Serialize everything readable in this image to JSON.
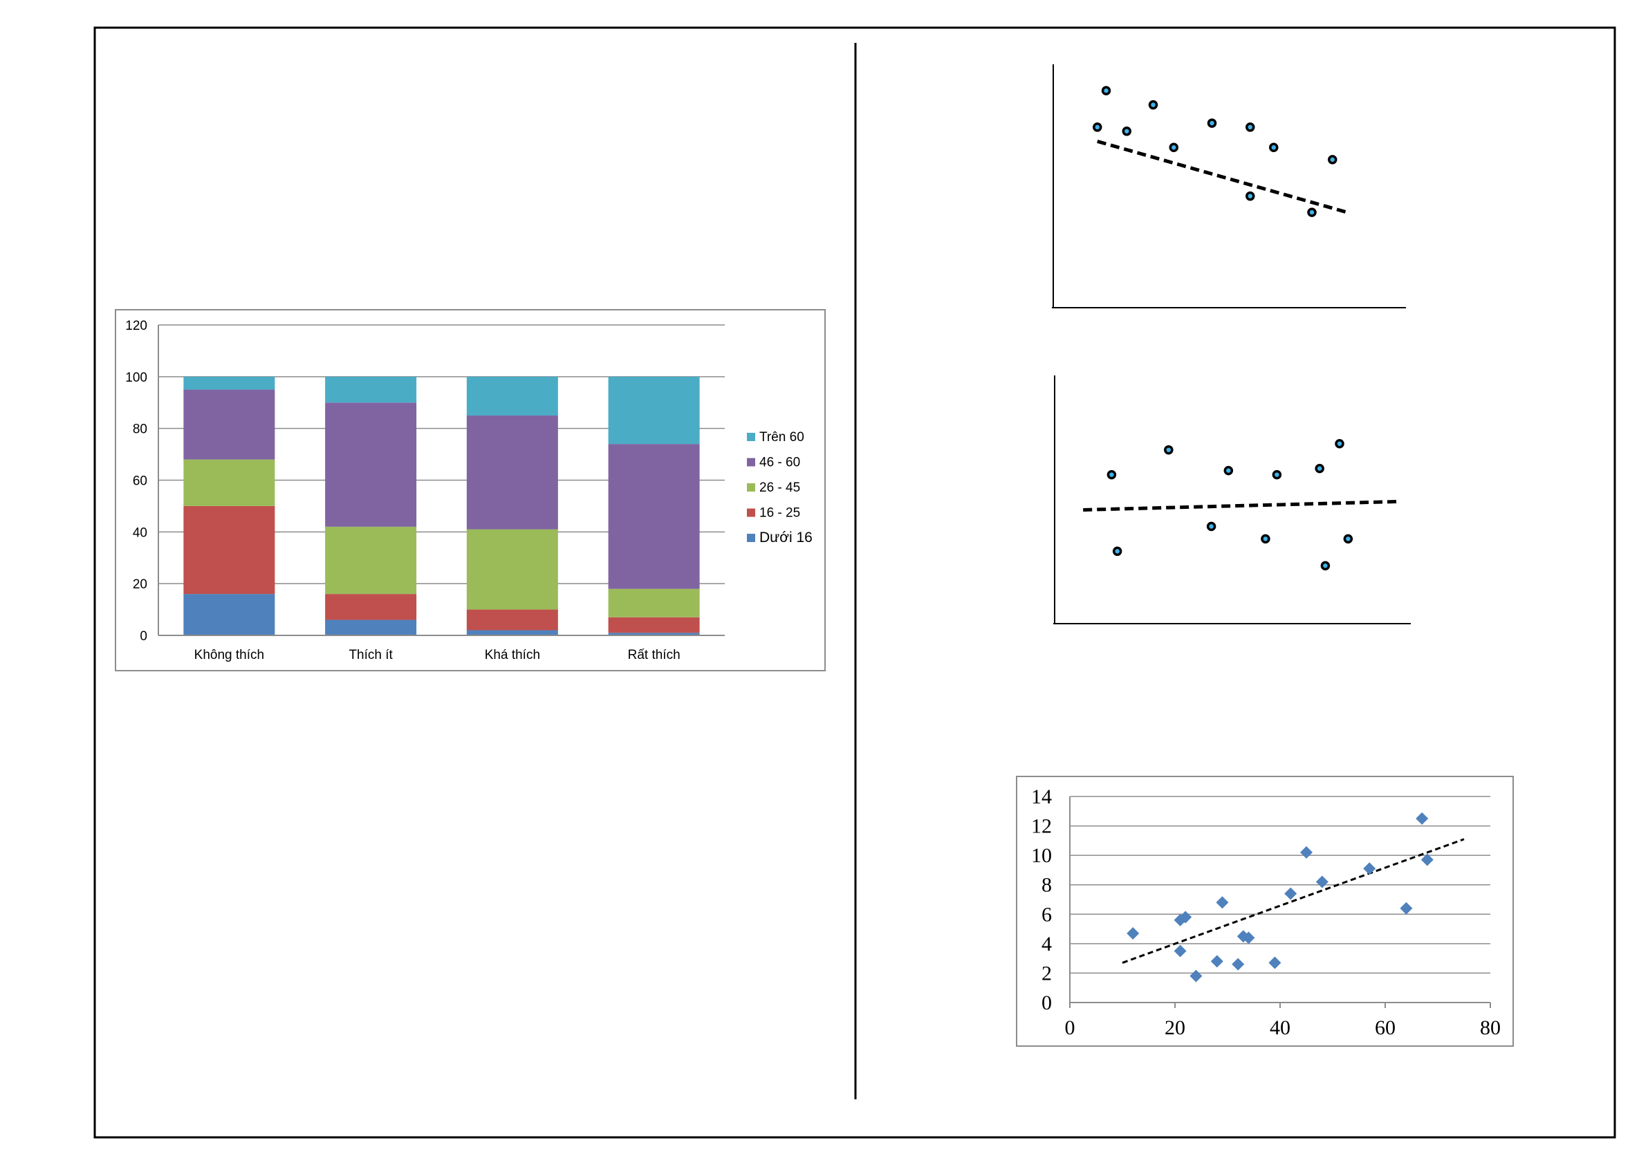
{
  "chart_data": [
    {
      "type": "bar",
      "stacked": true,
      "categories": [
        "Không thích",
        "Thích ít",
        "Khá thích",
        "Rất thích"
      ],
      "series": [
        {
          "name": "Dưới 16",
          "color": "#4f81bd",
          "values": [
            16,
            6,
            2,
            1
          ]
        },
        {
          "name": "16 - 25",
          "color": "#c0504d",
          "values": [
            34,
            10,
            8,
            6
          ]
        },
        {
          "name": "26 - 45",
          "color": "#9bbb59",
          "values": [
            18,
            26,
            31,
            11
          ]
        },
        {
          "name": "46 - 60",
          "color": "#8064a2",
          "values": [
            27,
            48,
            44,
            56
          ]
        },
        {
          "name": "Trên 60",
          "color": "#4bacc6",
          "values": [
            5,
            10,
            15,
            26
          ]
        }
      ],
      "ylim": [
        0,
        120
      ],
      "yticks": [
        0,
        20,
        40,
        60,
        80,
        100,
        120
      ],
      "grid": true,
      "legend": "right"
    },
    {
      "type": "scatter",
      "axes_labeled": false,
      "points": [
        [
          1,
          8.9
        ],
        [
          1.3,
          10.7
        ],
        [
          2.0,
          8.7
        ],
        [
          2.9,
          10
        ],
        [
          3.6,
          7.9
        ],
        [
          4.9,
          9.1
        ],
        [
          6.2,
          8.9
        ],
        [
          6.2,
          5.5
        ],
        [
          7.0,
          7.9
        ],
        [
          8.3,
          4.7
        ],
        [
          9.0,
          7.3
        ]
      ],
      "trendline": [
        [
          1,
          8.2
        ],
        [
          9.5,
          4.7
        ]
      ],
      "xlim": [
        -0.5,
        11.5
      ],
      "ylim": [
        0,
        12
      ],
      "trend": "negative"
    },
    {
      "type": "scatter",
      "axes_labeled": false,
      "points": [
        [
          1.5,
          7.2
        ],
        [
          1.7,
          3.5
        ],
        [
          3.5,
          8.4
        ],
        [
          5.0,
          4.7
        ],
        [
          5.6,
          7.4
        ],
        [
          6.9,
          4.1
        ],
        [
          7.3,
          7.2
        ],
        [
          8.8,
          7.5
        ],
        [
          9.0,
          2.8
        ],
        [
          9.5,
          8.7
        ],
        [
          9.8,
          4.1
        ]
      ],
      "trendline": [
        [
          0.5,
          5.5
        ],
        [
          11.5,
          5.9
        ]
      ],
      "xlim": [
        -0.5,
        12
      ],
      "ylim": [
        0,
        12
      ],
      "trend": "none"
    },
    {
      "type": "scatter",
      "points": [
        [
          12,
          4.7
        ],
        [
          21,
          5.6
        ],
        [
          22,
          5.8
        ],
        [
          21,
          3.5
        ],
        [
          24,
          1.8
        ],
        [
          28,
          2.8
        ],
        [
          29,
          6.8
        ],
        [
          32,
          2.6
        ],
        [
          33,
          4.5
        ],
        [
          34,
          4.4
        ],
        [
          39,
          2.7
        ],
        [
          42,
          7.4
        ],
        [
          45,
          10.2
        ],
        [
          48,
          8.2
        ],
        [
          57,
          9.1
        ],
        [
          64,
          6.4
        ],
        [
          67,
          12.5
        ],
        [
          68,
          9.7
        ]
      ],
      "trendline": [
        [
          10,
          2.7
        ],
        [
          75,
          11.1
        ]
      ],
      "xlim": [
        0,
        80
      ],
      "ylim": [
        0,
        14
      ],
      "xticks": [
        0,
        20,
        40,
        60,
        80
      ],
      "yticks": [
        0,
        2,
        4,
        6,
        8,
        10,
        12,
        14
      ],
      "grid": true,
      "marker": "diamond",
      "color": "#4f81bd"
    }
  ]
}
